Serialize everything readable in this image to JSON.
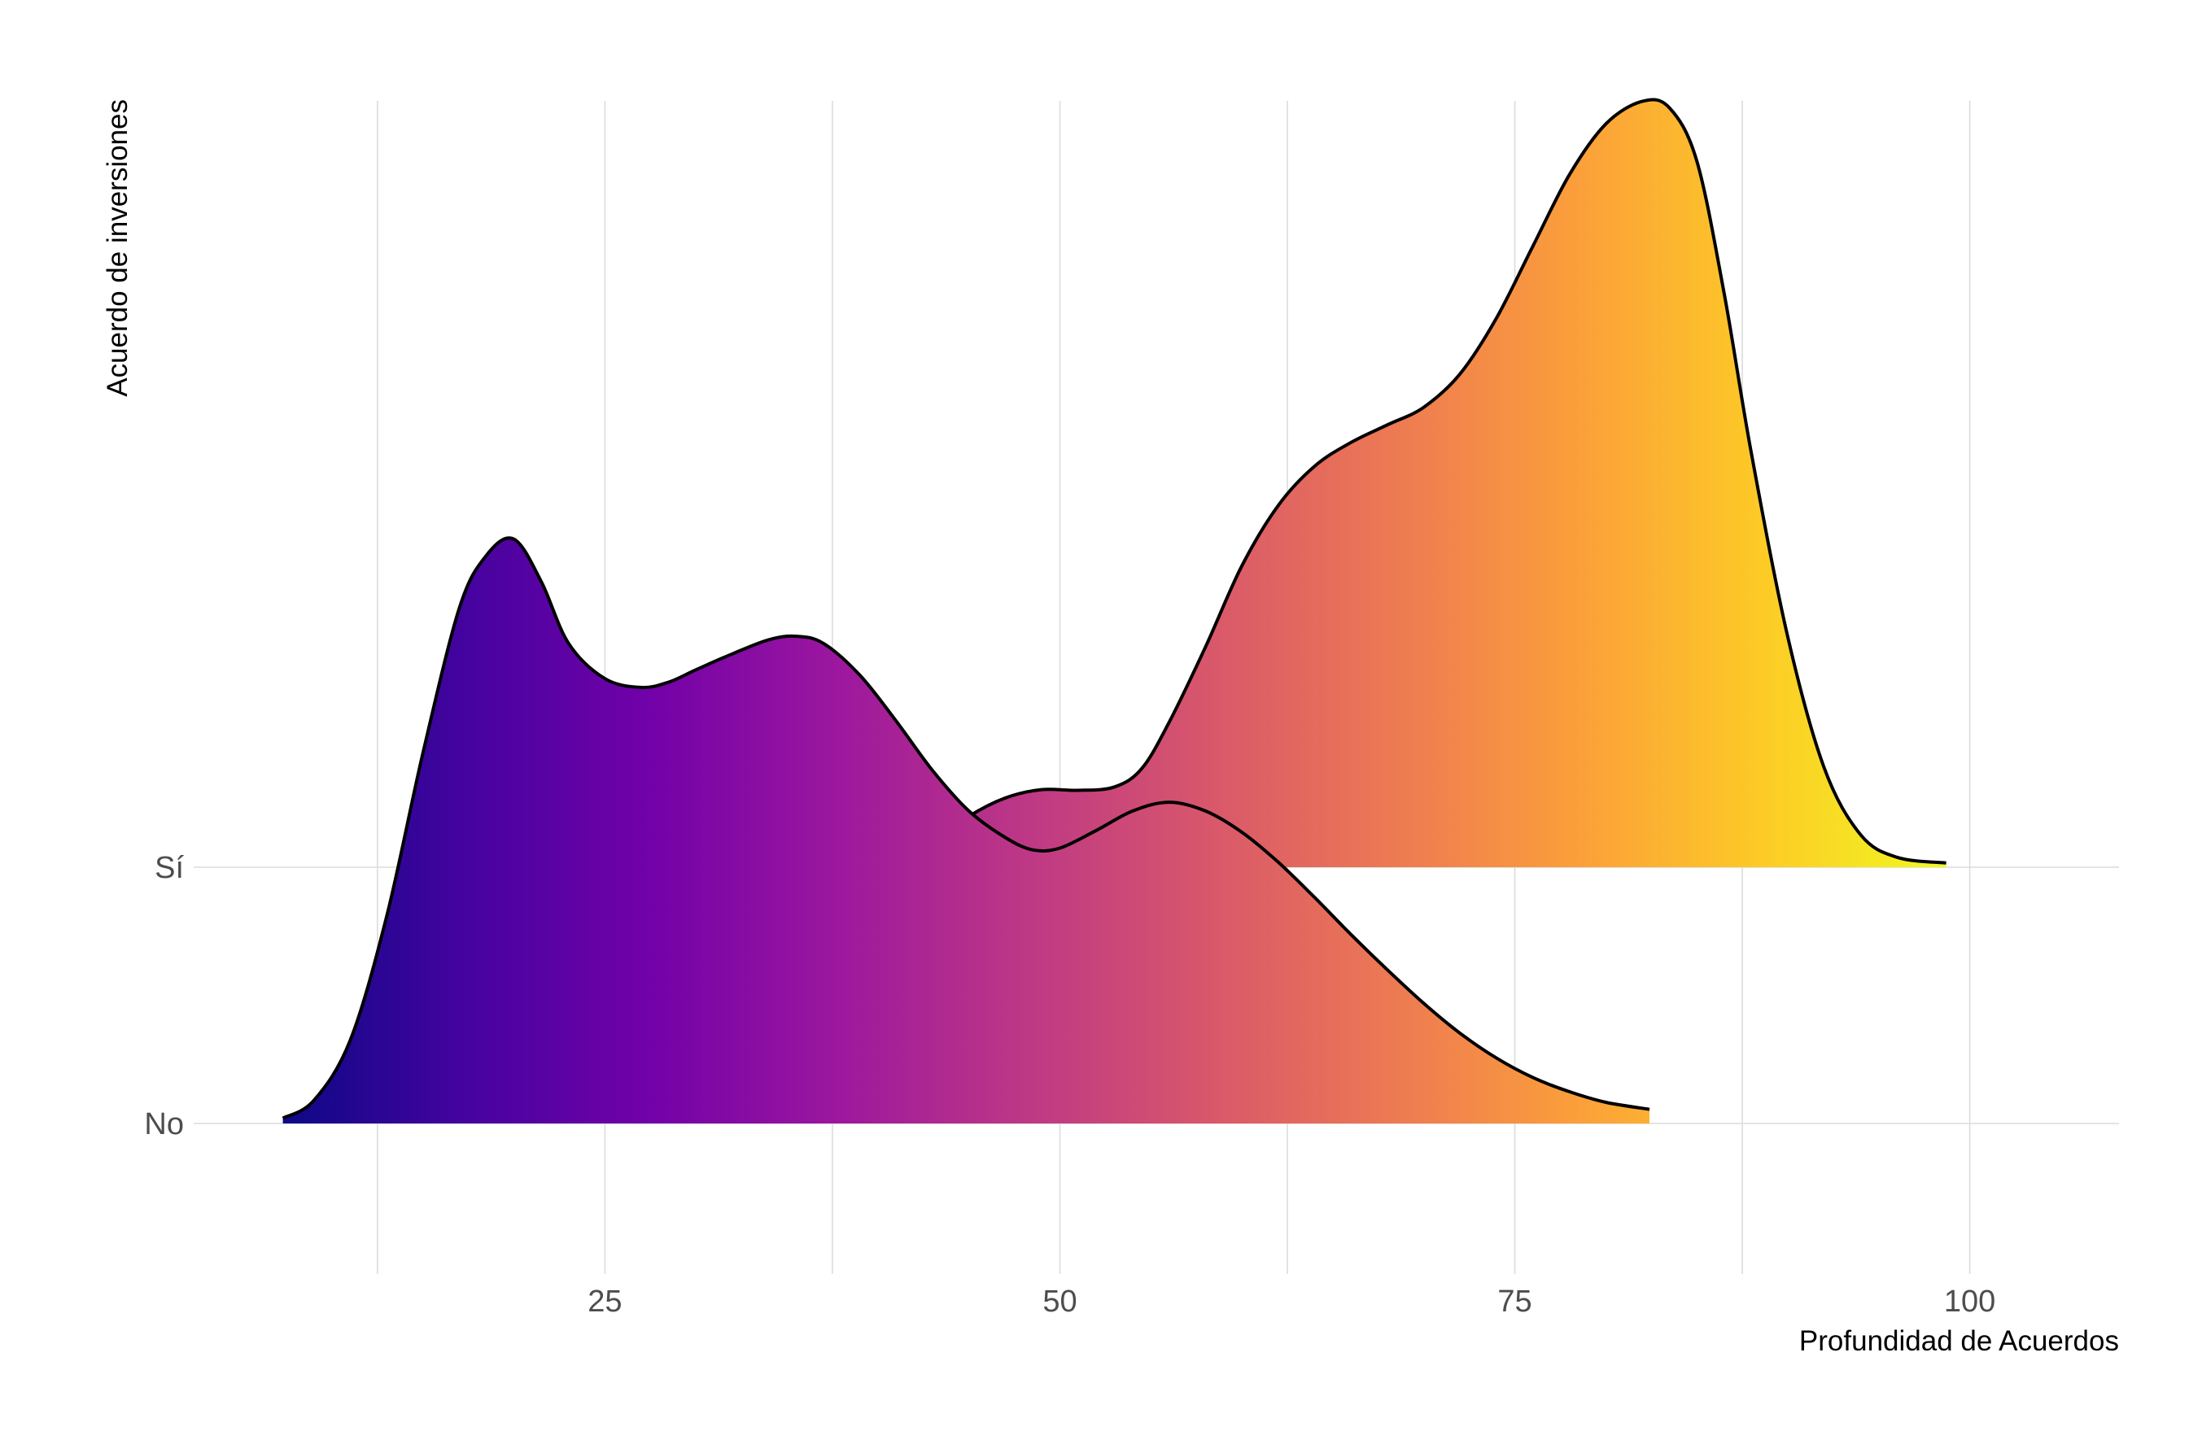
{
  "chart_data": {
    "type": "density-ridgeline",
    "xlabel": "Profundidad de Acuerdos",
    "ylabel": "Acuerdo de inversiones",
    "xlim": [
      2.4,
      108.2
    ],
    "x_ticks": [
      25,
      50,
      75,
      100
    ],
    "categories": [
      "No",
      "Sí"
    ],
    "grid": true,
    "fill_gradient": {
      "palette": "plasma",
      "domain": [
        7.3,
        98.7
      ],
      "stops": [
        "#0d0887",
        "#46039f",
        "#7201a8",
        "#9c179e",
        "#bd3786",
        "#d8576b",
        "#ed7953",
        "#fb9f3a",
        "#fdca26",
        "#f0f921"
      ]
    },
    "series": [
      {
        "name": "No",
        "x": [
          7.3,
          9,
          11,
          13,
          15,
          17,
          18.5,
          20,
          21.5,
          23,
          25,
          27,
          28.5,
          30,
          32,
          34,
          35.5,
          37,
          39,
          41,
          43,
          45,
          47,
          48.5,
          50,
          52,
          54,
          56,
          58,
          60,
          62,
          64,
          66,
          68,
          70,
          72,
          74,
          76,
          78,
          80,
          82.4
        ],
        "density": [
          0.003,
          0.013,
          0.047,
          0.117,
          0.21,
          0.292,
          0.322,
          0.331,
          0.307,
          0.272,
          0.252,
          0.247,
          0.25,
          0.257,
          0.266,
          0.274,
          0.276,
          0.272,
          0.254,
          0.228,
          0.2,
          0.177,
          0.162,
          0.155,
          0.156,
          0.166,
          0.177,
          0.182,
          0.177,
          0.165,
          0.148,
          0.128,
          0.107,
          0.087,
          0.068,
          0.051,
          0.037,
          0.026,
          0.018,
          0.012,
          0.008
        ]
      },
      {
        "name": "Sí",
        "x": [
          43.2,
          45,
          47,
          49,
          51,
          53,
          54.5,
          56,
          58,
          60,
          62,
          64,
          66,
          68,
          70,
          72,
          74,
          76,
          78,
          80,
          82,
          83.5,
          85,
          86.5,
          88,
          90,
          92,
          94,
          96,
          98.7
        ],
        "density": [
          0.0068,
          0.0133,
          0.0181,
          0.0203,
          0.0201,
          0.021,
          0.0258,
          0.0379,
          0.0576,
          0.0788,
          0.0946,
          0.1049,
          0.1111,
          0.1157,
          0.1203,
          0.1291,
          0.1437,
          0.1625,
          0.1811,
          0.1944,
          0.2003,
          0.1986,
          0.1847,
          0.1502,
          0.1082,
          0.0602,
          0.026,
          0.0085,
          0.0026,
          0.0011
        ]
      }
    ]
  }
}
